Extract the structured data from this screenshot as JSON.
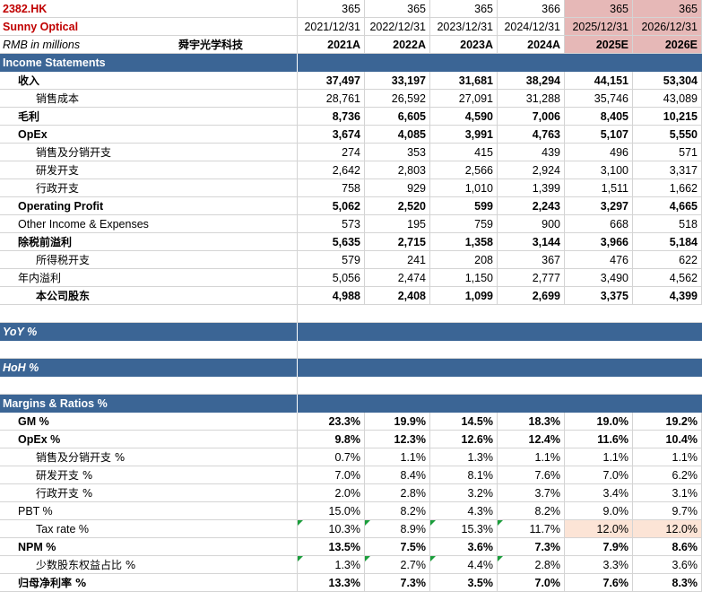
{
  "header": {
    "ticker": "2382.HK",
    "company": "Sunny Optical",
    "units": "RMB in millions",
    "company_cn": "舜宇光学科技",
    "days": [
      "365",
      "365",
      "365",
      "366",
      "365",
      "365"
    ],
    "dates": [
      "2021/12/31",
      "2022/12/31",
      "2023/12/31",
      "2024/12/31",
      "2025/12/31",
      "2026/12/31"
    ],
    "years": [
      "2021A",
      "2022A",
      "2023A",
      "2024A",
      "2025E",
      "2026E"
    ]
  },
  "colors": {
    "section": "#3b6595",
    "estimate_header": "#e6b8b7",
    "input_cell": "#fce4d6",
    "ticker": "#c00000"
  },
  "sections": {
    "income": "Income Statements",
    "yoy": "YoY %",
    "hoh": "HoH %",
    "margins": "Margins & Ratios %"
  },
  "income_rows": [
    {
      "label": "收入",
      "values": [
        "37,497",
        "33,197",
        "31,681",
        "38,294",
        "44,151",
        "53,304"
      ]
    },
    {
      "label": "销售成本",
      "values": [
        "28,761",
        "26,592",
        "27,091",
        "31,288",
        "35,746",
        "43,089"
      ]
    },
    {
      "label": "毛利",
      "values": [
        "8,736",
        "6,605",
        "4,590",
        "7,006",
        "8,405",
        "10,215"
      ]
    },
    {
      "label": "OpEx",
      "values": [
        "3,674",
        "4,085",
        "3,991",
        "4,763",
        "5,107",
        "5,550"
      ]
    },
    {
      "label": "销售及分销开支",
      "values": [
        "274",
        "353",
        "415",
        "439",
        "496",
        "571"
      ]
    },
    {
      "label": "研发开支",
      "values": [
        "2,642",
        "2,803",
        "2,566",
        "2,924",
        "3,100",
        "3,317"
      ]
    },
    {
      "label": "行政开支",
      "values": [
        "758",
        "929",
        "1,010",
        "1,399",
        "1,511",
        "1,662"
      ]
    },
    {
      "label": "Operating Profit",
      "values": [
        "5,062",
        "2,520",
        "599",
        "2,243",
        "3,297",
        "4,665"
      ]
    },
    {
      "label": "Other Income & Expenses",
      "values": [
        "573",
        "195",
        "759",
        "900",
        "668",
        "518"
      ]
    },
    {
      "label": "除税前溢利",
      "values": [
        "5,635",
        "2,715",
        "1,358",
        "3,144",
        "3,966",
        "5,184"
      ]
    },
    {
      "label": "所得税开支",
      "values": [
        "579",
        "241",
        "208",
        "367",
        "476",
        "622"
      ]
    },
    {
      "label": "年内溢利",
      "values": [
        "5,056",
        "2,474",
        "1,150",
        "2,777",
        "3,490",
        "4,562"
      ]
    },
    {
      "label": "本公司股东",
      "values": [
        "4,988",
        "2,408",
        "1,099",
        "2,699",
        "3,375",
        "4,399"
      ]
    }
  ],
  "margin_rows": [
    {
      "label": "GM %",
      "values": [
        "23.3%",
        "19.9%",
        "14.5%",
        "18.3%",
        "19.0%",
        "19.2%"
      ]
    },
    {
      "label": "OpEx %",
      "values": [
        "9.8%",
        "12.3%",
        "12.6%",
        "12.4%",
        "11.6%",
        "10.4%"
      ]
    },
    {
      "label": "销售及分销开支 %",
      "values": [
        "0.7%",
        "1.1%",
        "1.3%",
        "1.1%",
        "1.1%",
        "1.1%"
      ]
    },
    {
      "label": "研发开支 %",
      "values": [
        "7.0%",
        "8.4%",
        "8.1%",
        "7.6%",
        "7.0%",
        "6.2%"
      ]
    },
    {
      "label": "行政开支 %",
      "values": [
        "2.0%",
        "2.8%",
        "3.2%",
        "3.7%",
        "3.4%",
        "3.1%"
      ]
    },
    {
      "label": "PBT %",
      "values": [
        "15.0%",
        "8.2%",
        "4.3%",
        "8.2%",
        "9.0%",
        "9.7%"
      ]
    },
    {
      "label": "Tax rate %",
      "values": [
        "10.3%",
        "8.9%",
        "15.3%",
        "11.7%",
        "12.0%",
        "12.0%"
      ]
    },
    {
      "label": "NPM %",
      "values": [
        "13.5%",
        "7.5%",
        "3.6%",
        "7.3%",
        "7.9%",
        "8.6%"
      ]
    },
    {
      "label": "少数股东权益占比 %",
      "values": [
        "1.3%",
        "2.7%",
        "4.4%",
        "2.8%",
        "3.3%",
        "3.6%"
      ]
    },
    {
      "label": "归母净利率 %",
      "values": [
        "13.3%",
        "7.3%",
        "3.5%",
        "7.0%",
        "7.6%",
        "8.3%"
      ]
    }
  ]
}
